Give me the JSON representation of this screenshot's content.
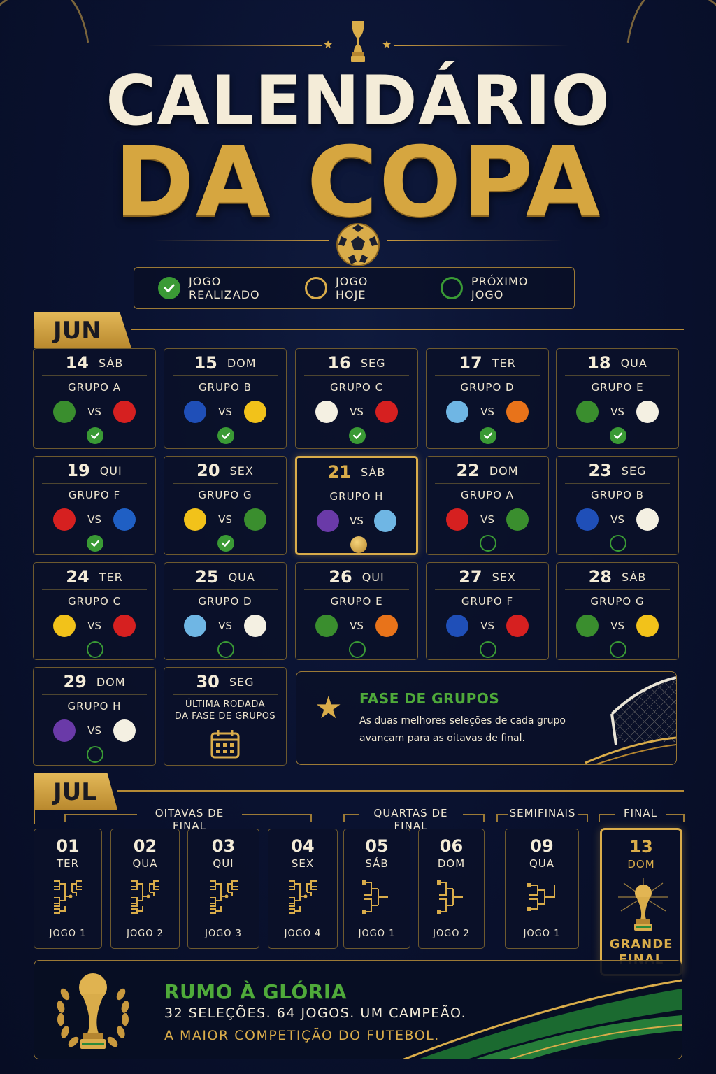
{
  "header": {
    "title_line1": "CALENDÁRIO",
    "title_line2": "DA COPA"
  },
  "legend": [
    {
      "label": "JOGO REALIZADO",
      "icon": "check-circle-icon",
      "color": "#3a9a35"
    },
    {
      "label": "JOGO HOJE",
      "icon": "gold-ring-icon",
      "color": "#d9ac4a"
    },
    {
      "label": "PRÓXIMO JOGO",
      "icon": "green-ring-icon",
      "color": "#3a9a35"
    }
  ],
  "june": {
    "month": "JUN",
    "days": [
      {
        "day": "14",
        "weekday": "SÁB",
        "group": "GRUPO A",
        "vs": "VS",
        "team_a": "#3a8e2e",
        "team_b": "#d62020",
        "status": "done"
      },
      {
        "day": "15",
        "weekday": "DOM",
        "group": "GRUPO B",
        "vs": "VS",
        "team_a": "#1f4fb8",
        "team_b": "#f2c21a",
        "status": "done"
      },
      {
        "day": "16",
        "weekday": "SEG",
        "group": "GRUPO C",
        "vs": "VS",
        "team_a": "#f4f0e2",
        "team_b": "#d62020",
        "status": "done"
      },
      {
        "day": "17",
        "weekday": "TER",
        "group": "GRUPO D",
        "vs": "VS",
        "team_a": "#6fb6e4",
        "team_b": "#e8731a",
        "status": "done"
      },
      {
        "day": "18",
        "weekday": "QUA",
        "group": "GRUPO E",
        "vs": "VS",
        "team_a": "#3a8e2e",
        "team_b": "#f4f0e2",
        "status": "done"
      },
      {
        "day": "19",
        "weekday": "QUI",
        "group": "GRUPO F",
        "vs": "VS",
        "team_a": "#d62020",
        "team_b": "#1f5fc4",
        "status": "done"
      },
      {
        "day": "20",
        "weekday": "SEX",
        "group": "GRUPO G",
        "vs": "VS",
        "team_a": "#f2c21a",
        "team_b": "#3a8e2e",
        "status": "done"
      },
      {
        "day": "21",
        "weekday": "SÁB",
        "group": "GRUPO H",
        "vs": "VS",
        "team_a": "#6a3aa8",
        "team_b": "#6fb6e4",
        "status": "today"
      },
      {
        "day": "22",
        "weekday": "DOM",
        "group": "GRUPO A",
        "vs": "VS",
        "team_a": "#d62020",
        "team_b": "#3a8e2e",
        "status": "next"
      },
      {
        "day": "23",
        "weekday": "SEG",
        "group": "GRUPO B",
        "vs": "VS",
        "team_a": "#1f4fb8",
        "team_b": "#f4f0e2",
        "status": "next"
      },
      {
        "day": "24",
        "weekday": "TER",
        "group": "GRUPO C",
        "vs": "VS",
        "team_a": "#f2c21a",
        "team_b": "#d62020",
        "status": "next"
      },
      {
        "day": "25",
        "weekday": "QUA",
        "group": "GRUPO D",
        "vs": "VS",
        "team_a": "#6fb6e4",
        "team_b": "#f4f0e2",
        "status": "next"
      },
      {
        "day": "26",
        "weekday": "QUI",
        "group": "GRUPO E",
        "vs": "VS",
        "team_a": "#3a8e2e",
        "team_b": "#e8731a",
        "status": "next"
      },
      {
        "day": "27",
        "weekday": "SEX",
        "group": "GRUPO F",
        "vs": "VS",
        "team_a": "#1f4fb8",
        "team_b": "#d62020",
        "status": "next"
      },
      {
        "day": "28",
        "weekday": "SÁB",
        "group": "GRUPO G",
        "vs": "VS",
        "team_a": "#3a8e2e",
        "team_b": "#f2c21a",
        "status": "next"
      },
      {
        "day": "29",
        "weekday": "DOM",
        "group": "GRUPO H",
        "vs": "VS",
        "team_a": "#6a3aa8",
        "team_b": "#f4f0e2",
        "status": "next"
      }
    ],
    "last_day": {
      "day": "30",
      "weekday": "SEG",
      "text_line1": "ÚLTIMA RODADA",
      "text_line2": "DA FASE DE GRUPOS"
    },
    "info": {
      "title": "FASE DE GRUPOS",
      "text": "As duas melhores seleções de cada grupo avançam para as oitavas de final."
    }
  },
  "july": {
    "month": "JUL",
    "stages": {
      "r16": "OITAVAS DE FINAL",
      "qf": "QUARTAS DE FINAL",
      "sf": "SEMIFINAIS",
      "final": "FINAL"
    },
    "games": [
      {
        "day": "01",
        "weekday": "TER",
        "game": "JOGO 1",
        "icon": "bracket-r16-icon"
      },
      {
        "day": "02",
        "weekday": "QUA",
        "game": "JOGO 2",
        "icon": "bracket-r16-icon"
      },
      {
        "day": "03",
        "weekday": "QUI",
        "game": "JOGO 3",
        "icon": "bracket-r16-icon"
      },
      {
        "day": "04",
        "weekday": "SEX",
        "game": "JOGO 4",
        "icon": "bracket-r16-icon"
      },
      {
        "day": "05",
        "weekday": "SÁB",
        "game": "JOGO 1",
        "icon": "bracket-qf-icon"
      },
      {
        "day": "06",
        "weekday": "DOM",
        "game": "JOGO 2",
        "icon": "bracket-qf-icon"
      },
      {
        "day": "09",
        "weekday": "QUA",
        "game": "JOGO 1",
        "icon": "bracket-sf-icon"
      }
    ],
    "final": {
      "day": "13",
      "weekday": "DOM",
      "label_line1": "GRANDE",
      "label_line2": "FINAL"
    }
  },
  "banner": {
    "title": "RUMO À GLÓRIA",
    "line1": "32 SELEÇÕES. 64 JOGOS. UM CAMPEÃO.",
    "line2": "A MAIOR COMPETIÇÃO DO FUTEBOL."
  },
  "colors": {
    "gold": "#d9ac4a",
    "green": "#3a9a35",
    "navy": "#0a1230"
  }
}
